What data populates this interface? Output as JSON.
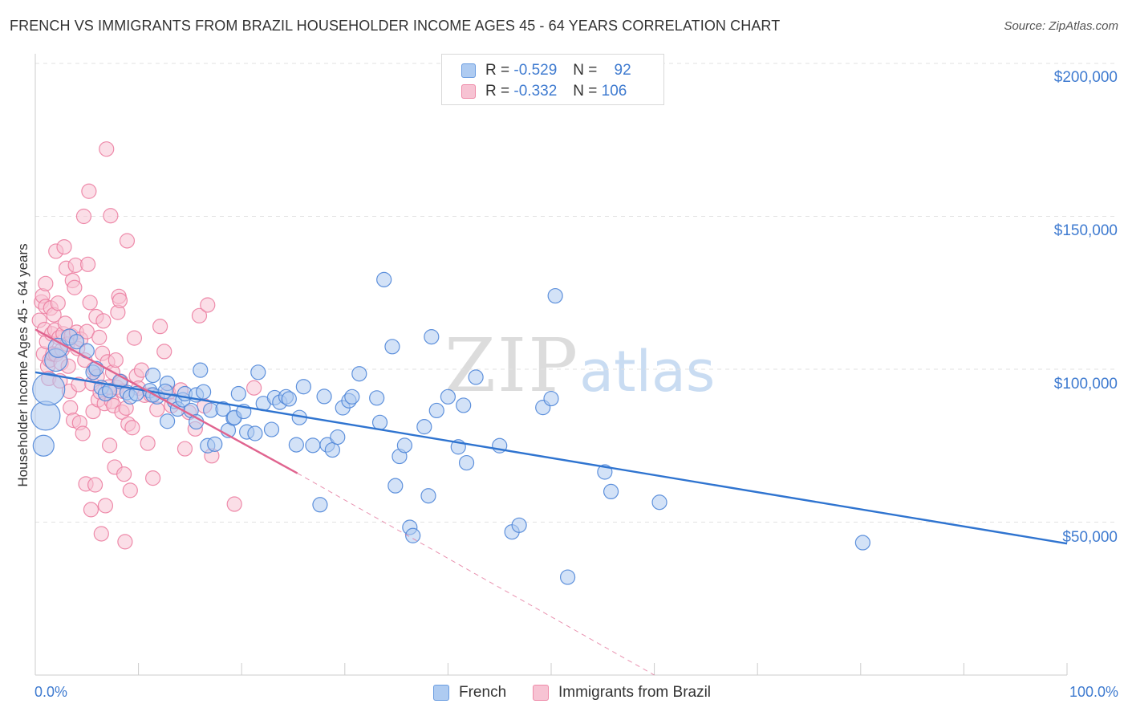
{
  "title": "FRENCH VS IMMIGRANTS FROM BRAZIL HOUSEHOLDER INCOME AGES 45 - 64 YEARS CORRELATION CHART",
  "source": "Source: ZipAtlas.com",
  "watermark": {
    "zip": "ZIP",
    "atlas": "atlas"
  },
  "colors": {
    "blue_fill": "#aecbf1",
    "blue_stroke": "#4f86d8",
    "blue_line": "#2f74d0",
    "pink_fill": "#f7c3d3",
    "pink_stroke": "#ec7fa2",
    "pink_line": "#e0648f",
    "axis_text": "#3f7bd0"
  },
  "legend_top": {
    "r_label": "R =",
    "n_label": "N =",
    "french": {
      "r": "-0.529",
      "n": "92"
    },
    "brazil": {
      "r": "-0.332",
      "n": "106"
    }
  },
  "chart_data": {
    "type": "scatter",
    "title": "FRENCH VS IMMIGRANTS FROM BRAZIL HOUSEHOLDER INCOME AGES 45 - 64 YEARS CORRELATION CHART",
    "xlabel": "",
    "ylabel": "Householder Income Ages 45 - 64 years",
    "xlim": [
      0,
      100
    ],
    "ylim": [
      0,
      210000
    ],
    "x_tick_labels": [
      "0.0%",
      "100.0%"
    ],
    "y_ticks": [
      50000,
      100000,
      150000,
      200000
    ],
    "y_tick_labels": [
      "$50,000",
      "$100,000",
      "$150,000",
      "$200,000"
    ],
    "grid": true,
    "legend_position": "top-center",
    "series": [
      {
        "name": "French",
        "color": "#4f86d8",
        "r": -0.529,
        "n": 92,
        "trend": {
          "x0": 0,
          "y0": 99000,
          "x1": 100,
          "y1": 43000
        },
        "points": [
          [
            0.8,
            75000,
            13
          ],
          [
            1.0,
            84800,
            18
          ],
          [
            1.3,
            93500,
            20
          ],
          [
            2.0,
            103000,
            14
          ],
          [
            2.2,
            107000,
            12
          ],
          [
            3.3,
            110500,
            10
          ],
          [
            4.0,
            109000,
            9
          ],
          [
            5.0,
            106000,
            9
          ],
          [
            5.6,
            99000,
            9
          ],
          [
            5.9,
            100200,
            9
          ],
          [
            6.4,
            94000,
            9
          ],
          [
            6.8,
            92000,
            9
          ],
          [
            7.2,
            93000,
            9
          ],
          [
            8.2,
            96000,
            9
          ],
          [
            8.9,
            92400,
            9
          ],
          [
            9.2,
            91000,
            9
          ],
          [
            9.8,
            92000,
            9
          ],
          [
            11.4,
            98000,
            9
          ],
          [
            11.1,
            93000,
            9
          ],
          [
            11.8,
            91000,
            9
          ],
          [
            12.8,
            95400,
            9
          ],
          [
            11.4,
            91600,
            9
          ],
          [
            12.6,
            92800,
            9
          ],
          [
            13.5,
            89500,
            9
          ],
          [
            13.8,
            87000,
            9
          ],
          [
            12.8,
            83000,
            9
          ],
          [
            14.3,
            90000,
            9
          ],
          [
            14.5,
            92000,
            9
          ],
          [
            15.6,
            91600,
            9
          ],
          [
            15.1,
            86500,
            9
          ],
          [
            15.6,
            82800,
            9
          ],
          [
            16.0,
            99700,
            9
          ],
          [
            16.3,
            92600,
            9
          ],
          [
            16.7,
            75000,
            9
          ],
          [
            17.0,
            86600,
            9
          ],
          [
            17.4,
            75500,
            9
          ],
          [
            18.2,
            87000,
            9
          ],
          [
            18.7,
            80000,
            9
          ],
          [
            19.2,
            84000,
            9
          ],
          [
            19.3,
            84200,
            9
          ],
          [
            19.7,
            92000,
            9
          ],
          [
            20.2,
            86200,
            9
          ],
          [
            20.5,
            79500,
            9
          ],
          [
            21.3,
            79000,
            9
          ],
          [
            21.6,
            99000,
            9
          ],
          [
            22.1,
            88800,
            9
          ],
          [
            22.9,
            80300,
            9
          ],
          [
            23.2,
            90700,
            9
          ],
          [
            23.7,
            89200,
            9
          ],
          [
            24.3,
            91000,
            9
          ],
          [
            24.6,
            90300,
            9
          ],
          [
            25.6,
            84200,
            9
          ],
          [
            25.3,
            75300,
            9
          ],
          [
            26.0,
            94300,
            9
          ],
          [
            26.9,
            75100,
            9
          ],
          [
            27.6,
            55700,
            9
          ],
          [
            28.0,
            91100,
            9
          ],
          [
            28.3,
            75300,
            9
          ],
          [
            28.8,
            73600,
            9
          ],
          [
            29.3,
            77800,
            9
          ],
          [
            29.8,
            87400,
            9
          ],
          [
            30.4,
            89700,
            9
          ],
          [
            30.7,
            91000,
            9
          ],
          [
            31.4,
            98500,
            9
          ],
          [
            33.1,
            90600,
            9
          ],
          [
            33.4,
            82600,
            9
          ],
          [
            33.8,
            129300,
            9
          ],
          [
            34.6,
            107400,
            9
          ],
          [
            34.9,
            61900,
            9
          ],
          [
            35.3,
            71500,
            9
          ],
          [
            35.8,
            75100,
            9
          ],
          [
            36.3,
            48300,
            9
          ],
          [
            36.6,
            45600,
            9
          ],
          [
            37.7,
            81200,
            9
          ],
          [
            38.1,
            58600,
            9
          ],
          [
            38.4,
            110600,
            9
          ],
          [
            38.9,
            86500,
            9
          ],
          [
            40.0,
            91000,
            9
          ],
          [
            41.0,
            74600,
            9
          ],
          [
            41.5,
            88200,
            9
          ],
          [
            41.8,
            69400,
            9
          ],
          [
            42.7,
            97400,
            9
          ],
          [
            45.0,
            75000,
            9
          ],
          [
            46.2,
            46800,
            9
          ],
          [
            46.9,
            49000,
            9
          ],
          [
            49.2,
            87500,
            9
          ],
          [
            50.0,
            90400,
            9
          ],
          [
            50.4,
            124000,
            9
          ],
          [
            51.6,
            32000,
            9
          ],
          [
            55.2,
            66400,
            9
          ],
          [
            55.8,
            60000,
            9
          ],
          [
            60.5,
            56500,
            9
          ],
          [
            80.2,
            43300,
            9
          ]
        ]
      },
      {
        "name": "Immigrants from Brazil",
        "color": "#ec7fa2",
        "r": -0.332,
        "n": 106,
        "trend": {
          "x0": 0,
          "y0": 113000,
          "x1": 25.4,
          "y1": 66000
        },
        "trend_dashed": {
          "x0": 25.4,
          "y0": 66000,
          "x1": 60,
          "y1": 0
        },
        "points": [
          [
            0.4,
            116000,
            9
          ],
          [
            0.6,
            122000,
            9
          ],
          [
            0.7,
            124000,
            9
          ],
          [
            0.8,
            105000,
            9
          ],
          [
            0.9,
            113000,
            9
          ],
          [
            1.0,
            120500,
            9
          ],
          [
            1.0,
            128000,
            9
          ],
          [
            1.1,
            109000,
            9
          ],
          [
            1.2,
            101000,
            9
          ],
          [
            1.3,
            97000,
            9
          ],
          [
            1.4,
            103000,
            9
          ],
          [
            1.5,
            120000,
            9
          ],
          [
            1.6,
            111600,
            9
          ],
          [
            1.7,
            105000,
            9
          ],
          [
            1.8,
            117800,
            9
          ],
          [
            1.9,
            112800,
            9
          ],
          [
            2.0,
            104800,
            9
          ],
          [
            2.0,
            138600,
            9
          ],
          [
            2.2,
            121600,
            9
          ],
          [
            2.3,
            110300,
            9
          ],
          [
            2.4,
            96200,
            9
          ],
          [
            2.5,
            102000,
            9
          ],
          [
            2.6,
            106400,
            9
          ],
          [
            2.7,
            111600,
            9
          ],
          [
            2.8,
            140000,
            9
          ],
          [
            2.9,
            115000,
            9
          ],
          [
            3.0,
            133000,
            9
          ],
          [
            3.1,
            108200,
            9
          ],
          [
            3.2,
            101000,
            9
          ],
          [
            3.3,
            92800,
            9
          ],
          [
            3.4,
            87400,
            9
          ],
          [
            3.5,
            111000,
            9
          ],
          [
            3.6,
            129000,
            9
          ],
          [
            3.7,
            83300,
            9
          ],
          [
            3.8,
            126700,
            9
          ],
          [
            3.9,
            134000,
            9
          ],
          [
            4.0,
            112100,
            9
          ],
          [
            4.1,
            106800,
            9
          ],
          [
            4.2,
            95000,
            9
          ],
          [
            4.3,
            82500,
            9
          ],
          [
            4.4,
            109800,
            9
          ],
          [
            4.6,
            79000,
            9
          ],
          [
            4.7,
            150000,
            9
          ],
          [
            4.8,
            103000,
            9
          ],
          [
            4.9,
            62500,
            9
          ],
          [
            5.0,
            112300,
            9
          ],
          [
            5.1,
            134300,
            9
          ],
          [
            5.2,
            158200,
            9
          ],
          [
            5.3,
            121800,
            9
          ],
          [
            5.4,
            54100,
            9
          ],
          [
            5.5,
            95300,
            9
          ],
          [
            5.6,
            86200,
            9
          ],
          [
            5.7,
            100000,
            9
          ],
          [
            5.8,
            62200,
            9
          ],
          [
            5.9,
            117200,
            9
          ],
          [
            6.0,
            97600,
            9
          ],
          [
            6.1,
            90000,
            9
          ],
          [
            6.2,
            110400,
            9
          ],
          [
            6.3,
            92500,
            9
          ],
          [
            6.4,
            46200,
            9
          ],
          [
            6.5,
            105200,
            9
          ],
          [
            6.6,
            115800,
            9
          ],
          [
            6.7,
            88800,
            9
          ],
          [
            6.8,
            55400,
            9
          ],
          [
            6.9,
            172000,
            9
          ],
          [
            7.0,
            102400,
            9
          ],
          [
            7.1,
            94200,
            9
          ],
          [
            7.2,
            75100,
            9
          ],
          [
            7.3,
            150200,
            9
          ],
          [
            7.4,
            89500,
            9
          ],
          [
            7.5,
            99000,
            9
          ],
          [
            7.6,
            88100,
            9
          ],
          [
            7.7,
            68000,
            9
          ],
          [
            7.8,
            103000,
            9
          ],
          [
            7.9,
            94100,
            9
          ],
          [
            8.0,
            118600,
            9
          ],
          [
            8.1,
            123800,
            9
          ],
          [
            8.2,
            122500,
            9
          ],
          [
            8.3,
            96000,
            9
          ],
          [
            8.4,
            86000,
            9
          ],
          [
            8.5,
            92800,
            9
          ],
          [
            8.6,
            65700,
            9
          ],
          [
            8.7,
            43600,
            9
          ],
          [
            8.8,
            87300,
            9
          ],
          [
            8.9,
            142000,
            9
          ],
          [
            9.0,
            82100,
            9
          ],
          [
            9.2,
            60400,
            9
          ],
          [
            9.4,
            80900,
            9
          ],
          [
            9.6,
            110200,
            9
          ],
          [
            9.8,
            97800,
            9
          ],
          [
            10.0,
            93800,
            9
          ],
          [
            10.3,
            99700,
            9
          ],
          [
            10.6,
            91500,
            9
          ],
          [
            10.9,
            75800,
            9
          ],
          [
            11.2,
            91600,
            9
          ],
          [
            11.4,
            64400,
            9
          ],
          [
            11.8,
            86900,
            9
          ],
          [
            12.1,
            114000,
            9
          ],
          [
            12.5,
            105800,
            9
          ],
          [
            12.9,
            92300,
            9
          ],
          [
            13.2,
            88100,
            9
          ],
          [
            14.1,
            93200,
            9
          ],
          [
            14.5,
            74000,
            9
          ],
          [
            14.9,
            85900,
            9
          ],
          [
            15.5,
            80500,
            9
          ],
          [
            15.9,
            117500,
            9
          ],
          [
            16.4,
            88000,
            9
          ],
          [
            16.7,
            121000,
            9
          ],
          [
            17.1,
            71700,
            9
          ],
          [
            19.3,
            55900,
            9
          ],
          [
            21.2,
            93900,
            9
          ]
        ]
      }
    ]
  },
  "bottom_legend": [
    "French",
    "Immigrants from Brazil"
  ]
}
